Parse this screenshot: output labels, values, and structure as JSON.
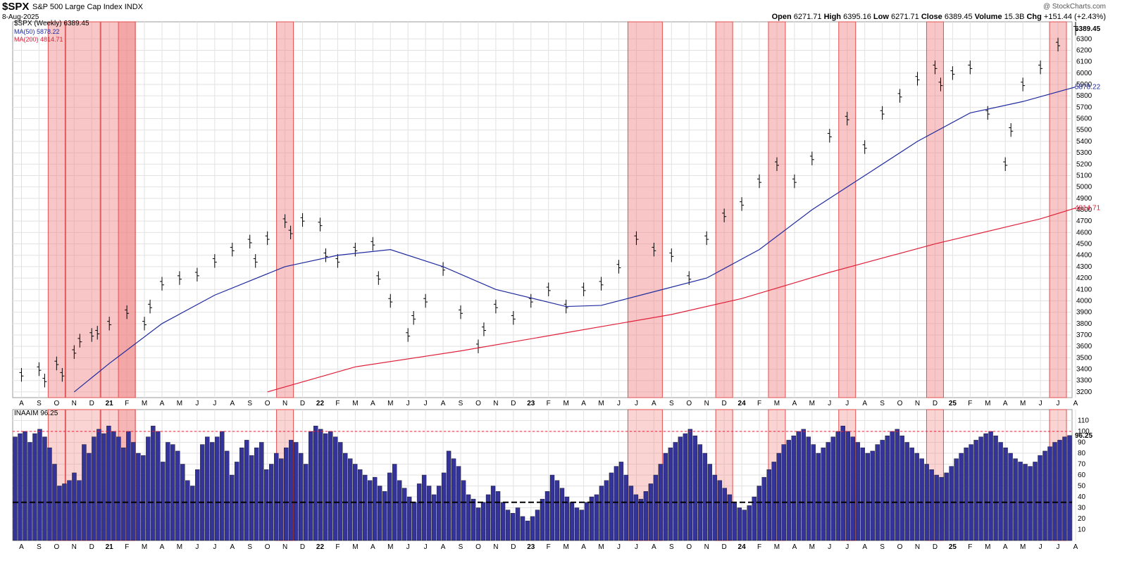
{
  "header": {
    "symbol": "$SPX",
    "name": "S&P 500 Large Cap Index",
    "exchange": "INDX",
    "date": "8-Aug-2025",
    "copyright": "@ StockCharts.com",
    "open_label": "Open",
    "open": "6271.71",
    "high_label": "High",
    "high": "6395.16",
    "low_label": "Low",
    "low": "6271.71",
    "close_label": "Close",
    "close": "6389.45",
    "volume_label": "Volume",
    "volume": "15.3B",
    "chg_label": "Chg",
    "chg": "+151.44 (+2.43%)"
  },
  "legend": {
    "price": "$SPX (Weekly) 6389.45",
    "ma50": "MA(50) 5878.22",
    "ma200": "MA(200) 4814.71",
    "indicator": "INAAIM 96.25"
  },
  "colors": {
    "price_bar": "#000000",
    "ma50": "#1f2b9f",
    "ma200": "#e0203a",
    "highlight": "#f08080",
    "arrow": "#1a2ee6",
    "naaim_bar": "#333399",
    "grid": "#e2e2e2"
  },
  "chart_data": [
    {
      "type": "line",
      "title": "$SPX (Weekly)",
      "ylim": [
        3150,
        6450
      ],
      "yticks": [
        3200,
        3300,
        3400,
        3500,
        3600,
        3700,
        3800,
        3900,
        4000,
        4100,
        4200,
        4300,
        4400,
        4500,
        4600,
        4700,
        4800,
        4900,
        5000,
        5100,
        5200,
        5300,
        5400,
        5500,
        5600,
        5700,
        5800,
        5900,
        6000,
        6100,
        6200,
        6300
      ],
      "x_labels": [
        "A",
        "S",
        "O",
        "N",
        "D",
        "21",
        "F",
        "M",
        "A",
        "M",
        "J",
        "J",
        "A",
        "S",
        "O",
        "N",
        "D",
        "22",
        "F",
        "M",
        "A",
        "M",
        "J",
        "J",
        "A",
        "S",
        "O",
        "N",
        "D",
        "23",
        "F",
        "M",
        "A",
        "M",
        "J",
        "J",
        "A",
        "S",
        "O",
        "N",
        "D",
        "24",
        "F",
        "M",
        "A",
        "M",
        "J",
        "J",
        "A",
        "S",
        "O",
        "N",
        "D",
        "25",
        "F",
        "M",
        "A",
        "M",
        "J",
        "J",
        "A"
      ],
      "series": [
        {
          "name": "$SPX",
          "points": [
            [
              "2020-08",
              3350
            ],
            [
              "2020-09",
              3400
            ],
            [
              "2020-09",
              3300
            ],
            [
              "2020-10",
              3450
            ],
            [
              "2020-10",
              3350
            ],
            [
              "2020-11",
              3550
            ],
            [
              "2020-11",
              3650
            ],
            [
              "2020-12",
              3700
            ],
            [
              "2020-12",
              3720
            ],
            [
              "2021-01",
              3800
            ],
            [
              "2021-02",
              3900
            ],
            [
              "2021-03",
              3800
            ],
            [
              "2021-03",
              3950
            ],
            [
              "2021-04",
              4150
            ],
            [
              "2021-05",
              4200
            ],
            [
              "2021-06",
              4230
            ],
            [
              "2021-07",
              4350
            ],
            [
              "2021-08",
              4450
            ],
            [
              "2021-09",
              4520
            ],
            [
              "2021-09",
              4350
            ],
            [
              "2021-10",
              4550
            ],
            [
              "2021-11",
              4700
            ],
            [
              "2021-11",
              4600
            ],
            [
              "2021-12",
              4710
            ],
            [
              "2022-01",
              4670
            ],
            [
              "2022-01",
              4400
            ],
            [
              "2022-02",
              4350
            ],
            [
              "2022-03",
              4450
            ],
            [
              "2022-04",
              4500
            ],
            [
              "2022-04",
              4200
            ],
            [
              "2022-05",
              4000
            ],
            [
              "2022-06",
              3700
            ],
            [
              "2022-06",
              3850
            ],
            [
              "2022-07",
              4000
            ],
            [
              "2022-08",
              4280
            ],
            [
              "2022-09",
              3900
            ],
            [
              "2022-10",
              3600
            ],
            [
              "2022-10",
              3750
            ],
            [
              "2022-11",
              3950
            ],
            [
              "2022-12",
              3850
            ],
            [
              "2023-01",
              4000
            ],
            [
              "2023-02",
              4100
            ],
            [
              "2023-03",
              3950
            ],
            [
              "2023-04",
              4100
            ],
            [
              "2023-05",
              4150
            ],
            [
              "2023-06",
              4300
            ],
            [
              "2023-07",
              4550
            ],
            [
              "2023-08",
              4450
            ],
            [
              "2023-09",
              4400
            ],
            [
              "2023-10",
              4200
            ],
            [
              "2023-11",
              4550
            ],
            [
              "2023-12",
              4750
            ],
            [
              "2024-01",
              4850
            ],
            [
              "2024-02",
              5050
            ],
            [
              "2024-03",
              5200
            ],
            [
              "2024-04",
              5050
            ],
            [
              "2024-05",
              5250
            ],
            [
              "2024-06",
              5450
            ],
            [
              "2024-07",
              5600
            ],
            [
              "2024-08",
              5350
            ],
            [
              "2024-09",
              5650
            ],
            [
              "2024-10",
              5800
            ],
            [
              "2024-11",
              5950
            ],
            [
              "2024-12",
              6050
            ],
            [
              "2024-12",
              5900
            ],
            [
              "2025-01",
              6000
            ],
            [
              "2025-02",
              6050
            ],
            [
              "2025-03",
              5650
            ],
            [
              "2025-04",
              5200
            ],
            [
              "2025-04",
              5500
            ],
            [
              "2025-05",
              5900
            ],
            [
              "2025-06",
              6050
            ],
            [
              "2025-07",
              6250
            ],
            [
              "2025-08",
              6389.45
            ]
          ]
        },
        {
          "name": "MA(50)",
          "points": [
            [
              "2020-11",
              3200
            ],
            [
              "2021-01",
              3450
            ],
            [
              "2021-04",
              3800
            ],
            [
              "2021-07",
              4050
            ],
            [
              "2021-11",
              4300
            ],
            [
              "2022-02",
              4400
            ],
            [
              "2022-05",
              4450
            ],
            [
              "2022-08",
              4300
            ],
            [
              "2022-11",
              4100
            ],
            [
              "2023-03",
              3950
            ],
            [
              "2023-05",
              3960
            ],
            [
              "2023-08",
              4080
            ],
            [
              "2023-11",
              4200
            ],
            [
              "2024-02",
              4450
            ],
            [
              "2024-05",
              4800
            ],
            [
              "2024-08",
              5100
            ],
            [
              "2024-11",
              5400
            ],
            [
              "2025-02",
              5650
            ],
            [
              "2025-05",
              5750
            ],
            [
              "2025-08",
              5878.22
            ]
          ]
        },
        {
          "name": "MA(200)",
          "points": [
            [
              "2021-10",
              3200
            ],
            [
              "2022-03",
              3420
            ],
            [
              "2022-09",
              3560
            ],
            [
              "2023-03",
              3720
            ],
            [
              "2023-09",
              3880
            ],
            [
              "2024-01",
              4020
            ],
            [
              "2024-06",
              4250
            ],
            [
              "2024-12",
              4500
            ],
            [
              "2025-06",
              4720
            ],
            [
              "2025-08",
              4814.71
            ]
          ]
        }
      ]
    },
    {
      "type": "bar",
      "title": "INAAIM",
      "ylim": [
        0,
        120
      ],
      "yticks": [
        10,
        20,
        30,
        40,
        50,
        60,
        70,
        80,
        90,
        100,
        110
      ],
      "reference_lines": [
        100,
        35
      ],
      "last_value": 96.25,
      "x_labels": [
        "A",
        "S",
        "O",
        "N",
        "D",
        "21",
        "F",
        "M",
        "A",
        "M",
        "J",
        "J",
        "A",
        "S",
        "O",
        "N",
        "D",
        "22",
        "F",
        "M",
        "A",
        "M",
        "J",
        "J",
        "A",
        "S",
        "O",
        "N",
        "D",
        "23",
        "F",
        "M",
        "A",
        "M",
        "J",
        "J",
        "A",
        "S",
        "O",
        "N",
        "D",
        "24",
        "F",
        "M",
        "A",
        "M",
        "J",
        "J",
        "A",
        "S",
        "O",
        "N",
        "D",
        "25",
        "F",
        "M",
        "A",
        "M",
        "J",
        "J",
        "A"
      ],
      "values": [
        95,
        98,
        100,
        90,
        98,
        102,
        95,
        85,
        70,
        50,
        52,
        55,
        62,
        55,
        88,
        80,
        95,
        102,
        98,
        105,
        100,
        95,
        85,
        100,
        90,
        80,
        78,
        95,
        105,
        100,
        72,
        90,
        88,
        82,
        70,
        55,
        50,
        65,
        88,
        95,
        90,
        95,
        100,
        82,
        60,
        72,
        85,
        92,
        78,
        85,
        90,
        65,
        70,
        80,
        75,
        85,
        92,
        90,
        80,
        70,
        100,
        105,
        102,
        98,
        100,
        95,
        90,
        80,
        75,
        70,
        65,
        60,
        55,
        58,
        50,
        45,
        62,
        70,
        55,
        48,
        40,
        35,
        52,
        60,
        50,
        42,
        50,
        62,
        82,
        75,
        68,
        55,
        42,
        38,
        30,
        35,
        42,
        50,
        45,
        35,
        28,
        25,
        30,
        22,
        18,
        22,
        28,
        38,
        45,
        60,
        55,
        48,
        40,
        35,
        30,
        28,
        35,
        40,
        42,
        50,
        55,
        62,
        68,
        72,
        60,
        50,
        42,
        38,
        45,
        52,
        60,
        70,
        80,
        85,
        90,
        95,
        98,
        102,
        96,
        88,
        80,
        70,
        60,
        55,
        48,
        42,
        35,
        30,
        28,
        32,
        40,
        50,
        58,
        65,
        72,
        80,
        88,
        92,
        96,
        100,
        102,
        95,
        88,
        80,
        85,
        90,
        95,
        100,
        105,
        100,
        95,
        90,
        85,
        80,
        82,
        88,
        92,
        96,
        100,
        102,
        96,
        90,
        85,
        80,
        75,
        70,
        65,
        60,
        58,
        62,
        68,
        75,
        80,
        85,
        88,
        92,
        95,
        98,
        100,
        96,
        90,
        85,
        80,
        75,
        72,
        70,
        68,
        72,
        78,
        82,
        86,
        90,
        92,
        95,
        96.25
      ]
    }
  ],
  "highlights": [
    {
      "from": "2020-10",
      "to": "2020-10"
    },
    {
      "from": "2020-11",
      "to": "2020-12"
    },
    {
      "from": "2021-01",
      "to": "2021-02"
    },
    {
      "from": "2021-02",
      "to": "2021-02"
    },
    {
      "from": "2021-11",
      "to": "2021-11"
    },
    {
      "from": "2023-07",
      "to": "2023-08"
    },
    {
      "from": "2023-12",
      "to": "2023-12"
    },
    {
      "from": "2024-03",
      "to": "2024-03"
    },
    {
      "from": "2024-07",
      "to": "2024-07"
    },
    {
      "from": "2024-12",
      "to": "2024-12"
    },
    {
      "from": "2025-07",
      "to": "2025-07"
    }
  ]
}
